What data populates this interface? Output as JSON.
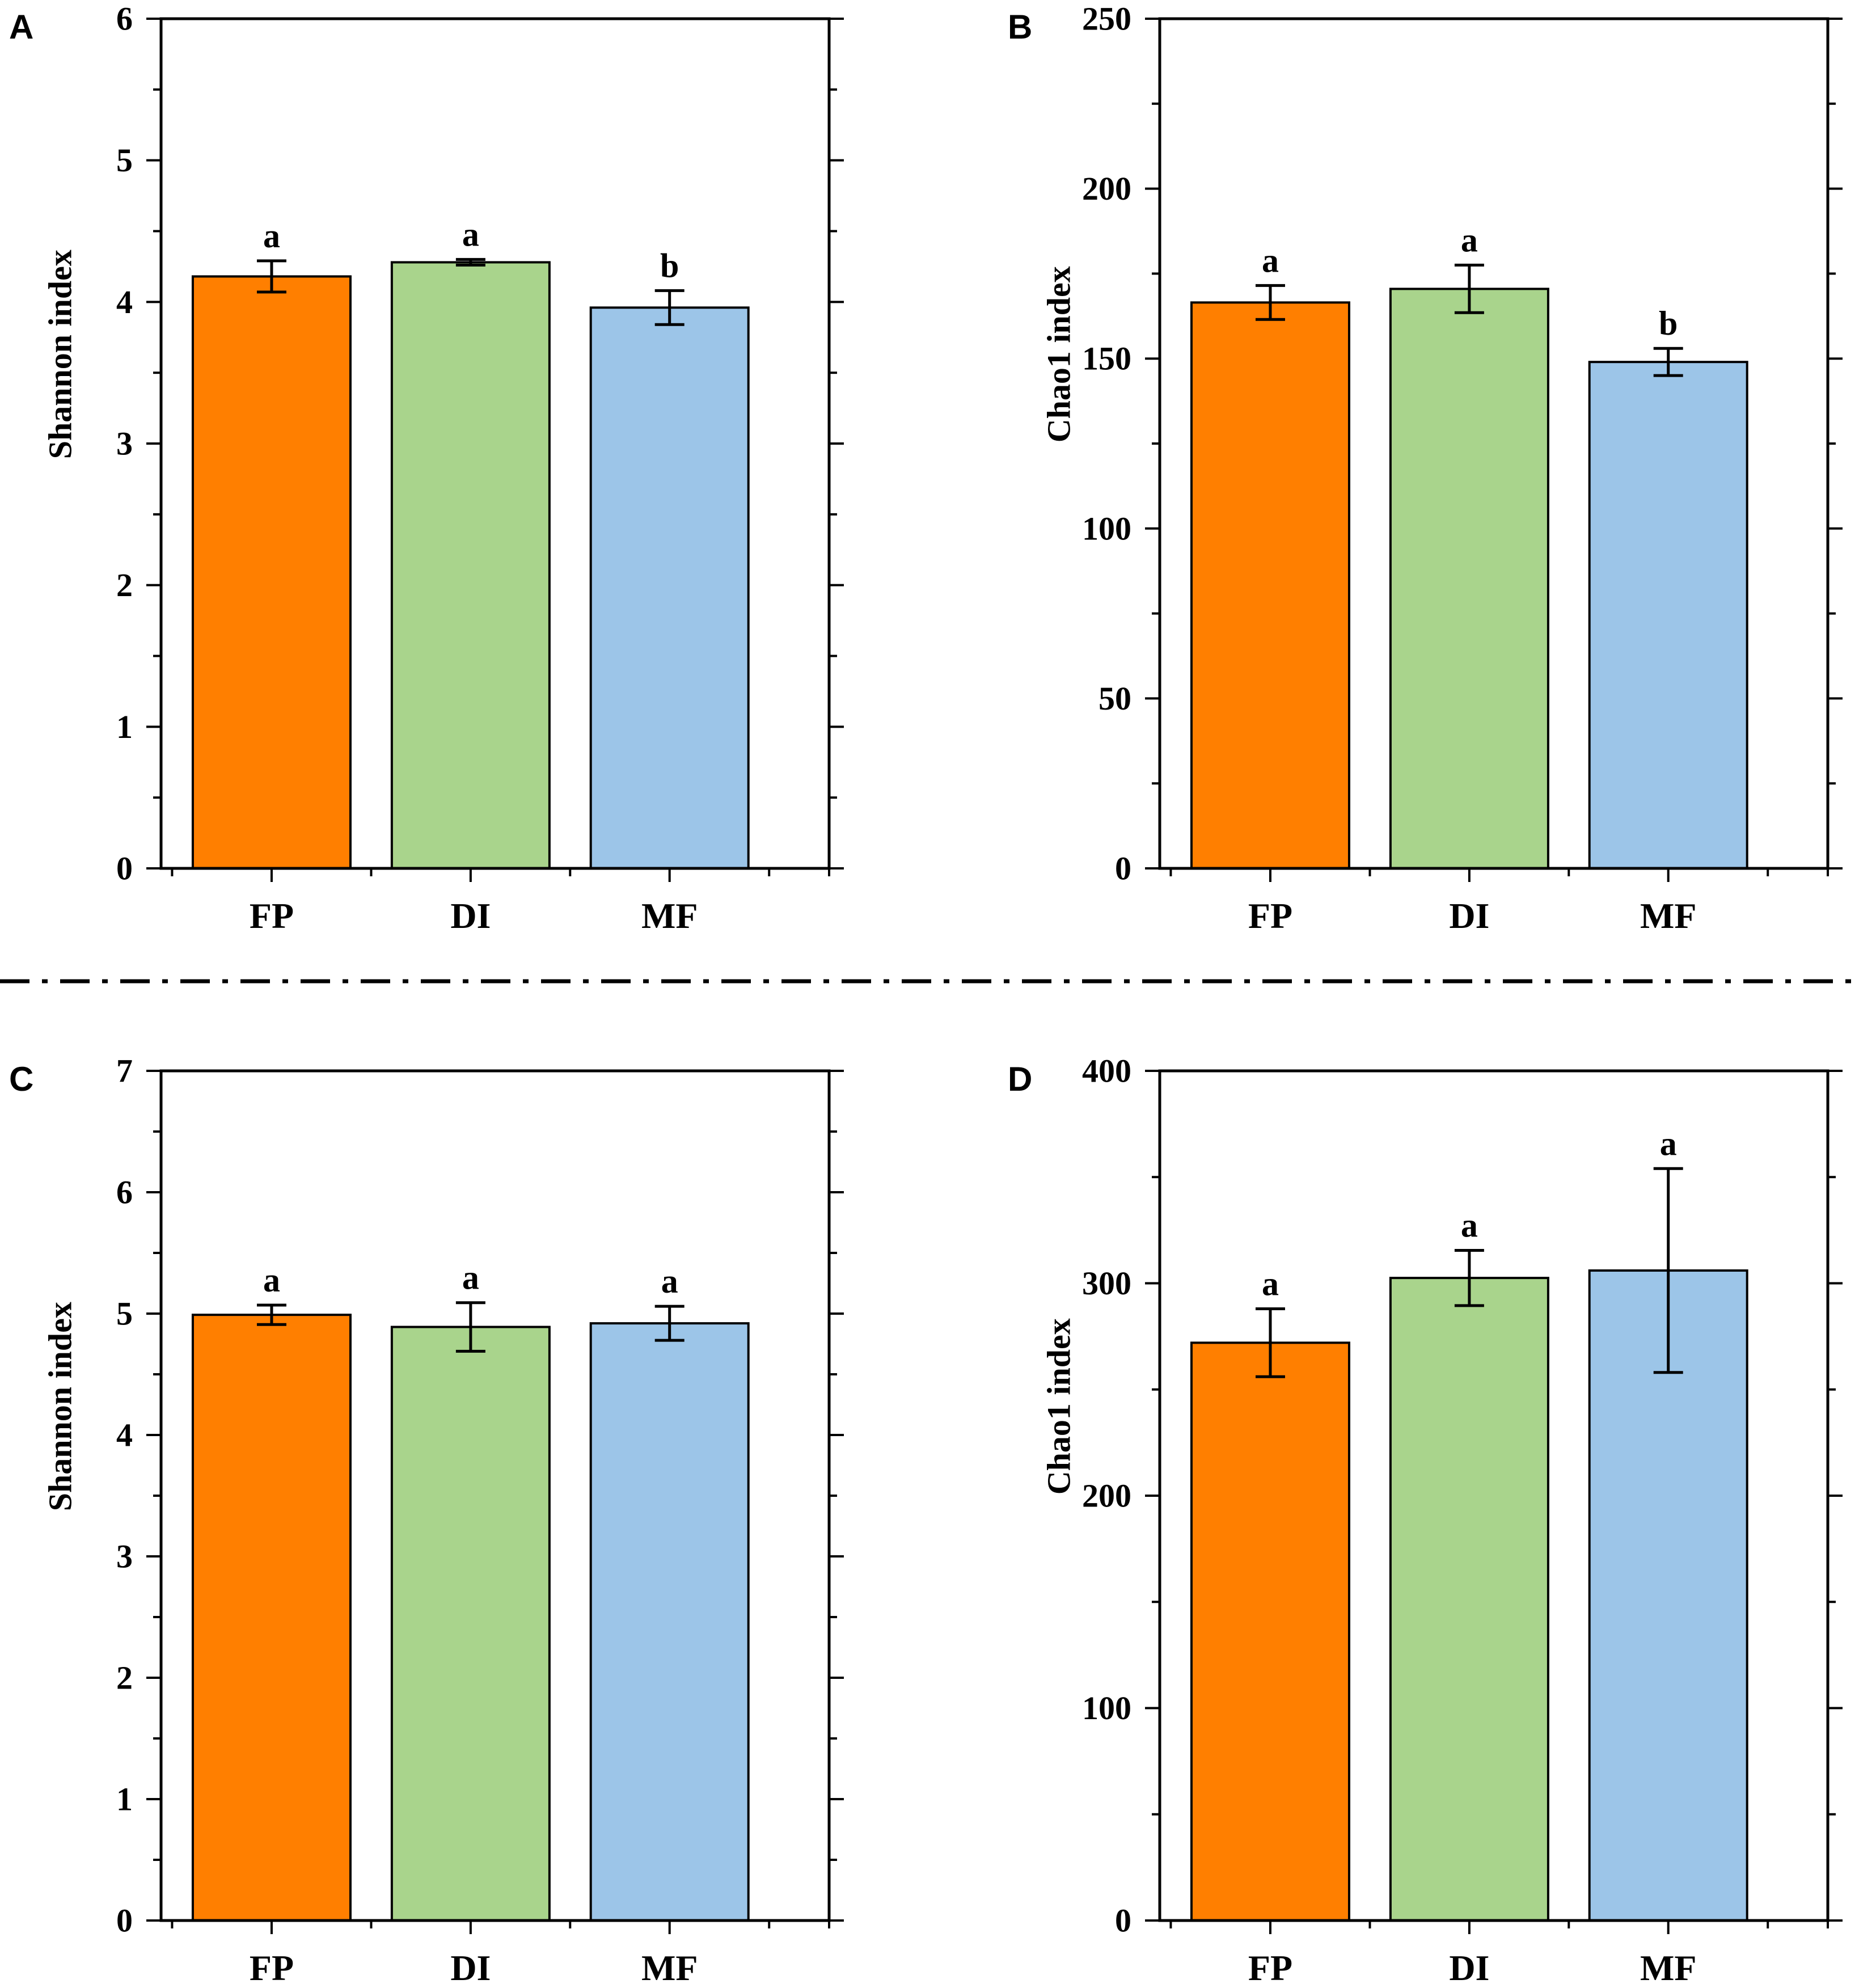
{
  "colors": {
    "FP": "#ff7f00",
    "DI": "#a9d48c",
    "MF": "#9cc5e8",
    "axis": "#000000",
    "background": "#ffffff"
  },
  "chart_data": [
    {
      "panel": "A",
      "type": "bar",
      "categories": [
        "FP",
        "DI",
        "MF"
      ],
      "values": [
        4.18,
        4.28,
        3.96
      ],
      "errors": [
        0.11,
        0.02,
        0.12
      ],
      "sig_letters": [
        "a",
        "a",
        "b"
      ],
      "ylabel": "Shannon index",
      "xlabel": "",
      "ylim": [
        0,
        6
      ],
      "yticks": [
        0,
        1,
        2,
        3,
        4,
        5,
        6
      ],
      "minor_step": 0.5
    },
    {
      "panel": "B",
      "type": "bar",
      "categories": [
        "FP",
        "DI",
        "MF"
      ],
      "values": [
        166.5,
        170.5,
        149
      ],
      "errors": [
        5,
        7,
        4
      ],
      "sig_letters": [
        "a",
        "a",
        "b"
      ],
      "ylabel": "Chao1 index",
      "xlabel": "",
      "ylim": [
        0,
        250
      ],
      "yticks": [
        0,
        50,
        100,
        150,
        200,
        250
      ],
      "minor_step": 25
    },
    {
      "panel": "C",
      "type": "bar",
      "categories": [
        "FP",
        "DI",
        "MF"
      ],
      "values": [
        4.99,
        4.89,
        4.92
      ],
      "errors": [
        0.08,
        0.2,
        0.14
      ],
      "sig_letters": [
        "a",
        "a",
        "a"
      ],
      "ylabel": "Shannon index",
      "xlabel": "",
      "ylim": [
        0,
        7
      ],
      "yticks": [
        0,
        1,
        2,
        3,
        4,
        5,
        6,
        7
      ],
      "minor_step": 0.5
    },
    {
      "panel": "D",
      "type": "bar",
      "categories": [
        "FP",
        "DI",
        "MF"
      ],
      "values": [
        272,
        302.5,
        306
      ],
      "errors": [
        16,
        13,
        48
      ],
      "sig_letters": [
        "a",
        "a",
        "a"
      ],
      "ylabel": "Chao1 index",
      "xlabel": "",
      "ylim": [
        0,
        400
      ],
      "yticks": [
        0,
        100,
        200,
        300,
        400
      ],
      "minor_step": 50
    }
  ]
}
